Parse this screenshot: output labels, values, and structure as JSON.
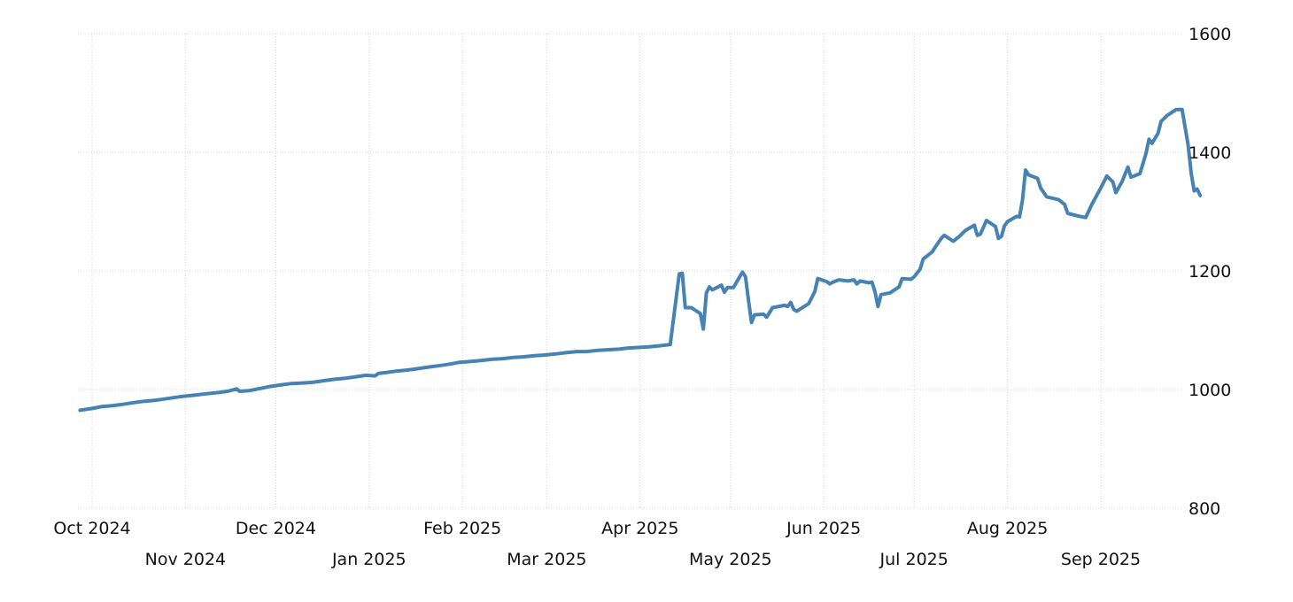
{
  "chart_data": {
    "type": "line",
    "title": "",
    "xlabel": "",
    "ylabel": "",
    "x_ticks": [
      {
        "label": "Oct 2024",
        "date": "2024-10-01"
      },
      {
        "label": "Nov 2024",
        "date": "2024-11-01"
      },
      {
        "label": "Dec 2024",
        "date": "2024-12-01"
      },
      {
        "label": "Jan 2025",
        "date": "2025-01-01"
      },
      {
        "label": "Feb 2025",
        "date": "2025-02-01"
      },
      {
        "label": "Mar 2025",
        "date": "2025-03-01"
      },
      {
        "label": "Apr 2025",
        "date": "2025-04-01"
      },
      {
        "label": "May 2025",
        "date": "2025-05-01"
      },
      {
        "label": "Jun 2025",
        "date": "2025-06-01"
      },
      {
        "label": "Jul 2025",
        "date": "2025-07-01"
      },
      {
        "label": "Aug 2025",
        "date": "2025-08-01"
      },
      {
        "label": "Sep 2025",
        "date": "2025-09-01"
      }
    ],
    "y_ticks": [
      800,
      1000,
      1200,
      1400,
      1600
    ],
    "ylim": [
      800,
      1600
    ],
    "xlim": [
      "2024-09-27",
      "2025-09-26"
    ],
    "grid": true,
    "y_axis_position": "right",
    "series": [
      {
        "color": "#4682b4",
        "points": [
          [
            "2024-09-27",
            965
          ],
          [
            "2024-10-01",
            968
          ],
          [
            "2024-10-04",
            971
          ],
          [
            "2024-10-08",
            973
          ],
          [
            "2024-10-11",
            975
          ],
          [
            "2024-10-15",
            978
          ],
          [
            "2024-10-18",
            980
          ],
          [
            "2024-10-22",
            982
          ],
          [
            "2024-10-25",
            984
          ],
          [
            "2024-10-29",
            987
          ],
          [
            "2024-11-01",
            989
          ],
          [
            "2024-11-05",
            991
          ],
          [
            "2024-11-08",
            993
          ],
          [
            "2024-11-12",
            995
          ],
          [
            "2024-11-15",
            997
          ],
          [
            "2024-11-18",
            1001
          ],
          [
            "2024-11-19",
            997
          ],
          [
            "2024-11-22",
            998
          ],
          [
            "2024-11-26",
            1002
          ],
          [
            "2024-11-29",
            1005
          ],
          [
            "2024-12-03",
            1008
          ],
          [
            "2024-12-06",
            1010
          ],
          [
            "2024-12-10",
            1011
          ],
          [
            "2024-12-13",
            1012
          ],
          [
            "2024-12-17",
            1015
          ],
          [
            "2024-12-20",
            1017
          ],
          [
            "2024-12-24",
            1019
          ],
          [
            "2024-12-27",
            1021
          ],
          [
            "2024-12-31",
            1024
          ],
          [
            "2025-01-03",
            1023
          ],
          [
            "2025-01-04",
            1027
          ],
          [
            "2025-01-07",
            1029
          ],
          [
            "2025-01-10",
            1031
          ],
          [
            "2025-01-14",
            1033
          ],
          [
            "2025-01-17",
            1035
          ],
          [
            "2025-01-21",
            1038
          ],
          [
            "2025-01-24",
            1040
          ],
          [
            "2025-01-28",
            1043
          ],
          [
            "2025-01-31",
            1046
          ],
          [
            "2025-02-03",
            1047
          ],
          [
            "2025-02-07",
            1049
          ],
          [
            "2025-02-11",
            1051
          ],
          [
            "2025-02-14",
            1052
          ],
          [
            "2025-02-18",
            1054
          ],
          [
            "2025-02-21",
            1055
          ],
          [
            "2025-02-25",
            1057
          ],
          [
            "2025-02-28",
            1058
          ],
          [
            "2025-03-04",
            1060
          ],
          [
            "2025-03-07",
            1062
          ],
          [
            "2025-03-11",
            1064
          ],
          [
            "2025-03-14",
            1064
          ],
          [
            "2025-03-18",
            1066
          ],
          [
            "2025-03-21",
            1067
          ],
          [
            "2025-03-25",
            1068
          ],
          [
            "2025-03-28",
            1070
          ],
          [
            "2025-04-01",
            1071
          ],
          [
            "2025-04-04",
            1072
          ],
          [
            "2025-04-08",
            1074
          ],
          [
            "2025-04-11",
            1076
          ],
          [
            "2025-04-14",
            1195
          ],
          [
            "2025-04-15",
            1196
          ],
          [
            "2025-04-16",
            1138
          ],
          [
            "2025-04-18",
            1138
          ],
          [
            "2025-04-21",
            1128
          ],
          [
            "2025-04-22",
            1102
          ],
          [
            "2025-04-23",
            1163
          ],
          [
            "2025-04-24",
            1173
          ],
          [
            "2025-04-25",
            1168
          ],
          [
            "2025-04-28",
            1176
          ],
          [
            "2025-04-29",
            1164
          ],
          [
            "2025-04-30",
            1172
          ],
          [
            "2025-05-02",
            1172
          ],
          [
            "2025-05-05",
            1198
          ],
          [
            "2025-05-06",
            1190
          ],
          [
            "2025-05-07",
            1150
          ],
          [
            "2025-05-08",
            1113
          ],
          [
            "2025-05-09",
            1126
          ],
          [
            "2025-05-12",
            1127
          ],
          [
            "2025-05-13",
            1122
          ],
          [
            "2025-05-15",
            1138
          ],
          [
            "2025-05-19",
            1142
          ],
          [
            "2025-05-20",
            1140
          ],
          [
            "2025-05-21",
            1147
          ],
          [
            "2025-05-22",
            1135
          ],
          [
            "2025-05-23",
            1132
          ],
          [
            "2025-05-27",
            1145
          ],
          [
            "2025-05-28",
            1155
          ],
          [
            "2025-05-29",
            1165
          ],
          [
            "2025-05-30",
            1187
          ],
          [
            "2025-06-02",
            1182
          ],
          [
            "2025-06-03",
            1178
          ],
          [
            "2025-06-04",
            1181
          ],
          [
            "2025-06-06",
            1185
          ],
          [
            "2025-06-09",
            1183
          ],
          [
            "2025-06-11",
            1185
          ],
          [
            "2025-06-12",
            1178
          ],
          [
            "2025-06-13",
            1183
          ],
          [
            "2025-06-16",
            1180
          ],
          [
            "2025-06-17",
            1181
          ],
          [
            "2025-06-18",
            1165
          ],
          [
            "2025-06-19",
            1140
          ],
          [
            "2025-06-20",
            1160
          ],
          [
            "2025-06-23",
            1163
          ],
          [
            "2025-06-26",
            1173
          ],
          [
            "2025-06-27",
            1187
          ],
          [
            "2025-06-30",
            1186
          ],
          [
            "2025-07-01",
            1190
          ],
          [
            "2025-07-03",
            1203
          ],
          [
            "2025-07-04",
            1220
          ],
          [
            "2025-07-07",
            1232
          ],
          [
            "2025-07-08",
            1240
          ],
          [
            "2025-07-10",
            1255
          ],
          [
            "2025-07-11",
            1260
          ],
          [
            "2025-07-14",
            1250
          ],
          [
            "2025-07-16",
            1258
          ],
          [
            "2025-07-18",
            1268
          ],
          [
            "2025-07-21",
            1277
          ],
          [
            "2025-07-22",
            1260
          ],
          [
            "2025-07-23",
            1262
          ],
          [
            "2025-07-25",
            1285
          ],
          [
            "2025-07-28",
            1275
          ],
          [
            "2025-07-29",
            1255
          ],
          [
            "2025-07-30",
            1258
          ],
          [
            "2025-07-31",
            1276
          ],
          [
            "2025-08-01",
            1283
          ],
          [
            "2025-08-04",
            1292
          ],
          [
            "2025-08-05",
            1291
          ],
          [
            "2025-08-06",
            1320
          ],
          [
            "2025-08-07",
            1370
          ],
          [
            "2025-08-08",
            1362
          ],
          [
            "2025-08-11",
            1356
          ],
          [
            "2025-08-12",
            1340
          ],
          [
            "2025-08-14",
            1325
          ],
          [
            "2025-08-18",
            1320
          ],
          [
            "2025-08-20",
            1312
          ],
          [
            "2025-08-21",
            1297
          ],
          [
            "2025-08-25",
            1292
          ],
          [
            "2025-08-27",
            1290
          ],
          [
            "2025-08-29",
            1312
          ],
          [
            "2025-09-01",
            1340
          ],
          [
            "2025-09-03",
            1360
          ],
          [
            "2025-09-05",
            1350
          ],
          [
            "2025-09-06",
            1332
          ],
          [
            "2025-09-08",
            1350
          ],
          [
            "2025-09-10",
            1375
          ],
          [
            "2025-09-11",
            1358
          ],
          [
            "2025-09-14",
            1364
          ],
          [
            "2025-09-16",
            1398
          ],
          [
            "2025-09-17",
            1422
          ],
          [
            "2025-09-18",
            1415
          ],
          [
            "2025-09-20",
            1432
          ],
          [
            "2025-09-21",
            1452
          ],
          [
            "2025-09-23",
            1462
          ],
          [
            "2025-09-26",
            1472
          ],
          [
            "2025-09-28",
            1472
          ],
          [
            "2025-09-30",
            1412
          ],
          [
            "2025-10-01",
            1365
          ],
          [
            "2025-10-02",
            1335
          ],
          [
            "2025-10-03",
            1338
          ],
          [
            "2025-10-04",
            1327
          ]
        ]
      }
    ]
  }
}
